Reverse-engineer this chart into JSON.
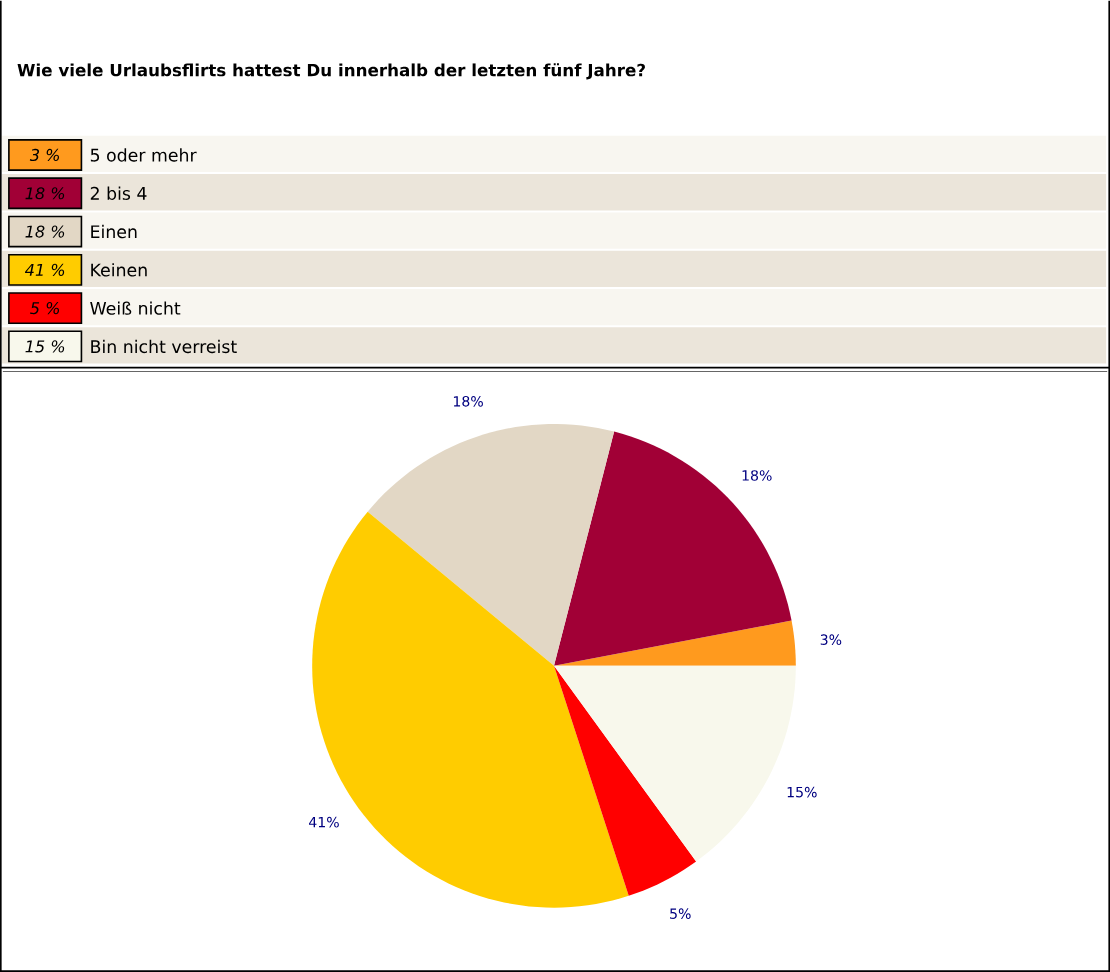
{
  "chart_data": {
    "type": "pie",
    "title": "Wie viele Urlaubsflirts hattest Du innerhalb der letzten fünf Jahre?",
    "categories": [
      "5 oder mehr",
      "2 bis 4",
      "Einen",
      "Keinen",
      "Weiß nicht",
      "Bin nicht verreist"
    ],
    "values": [
      3,
      18,
      18,
      41,
      5,
      15
    ],
    "colors": [
      "#ff9a1e",
      "#a10036",
      "#e2d7c5",
      "#ffcc00",
      "#ff0000",
      "#f8f8ec"
    ],
    "value_labels": [
      "3%",
      "18%",
      "18%",
      "41%",
      "5%",
      "15%"
    ],
    "annotations": [
      "3 %",
      "18 %",
      "18 %",
      "41 %",
      "5 %",
      "15 %"
    ],
    "legend": "top"
  }
}
